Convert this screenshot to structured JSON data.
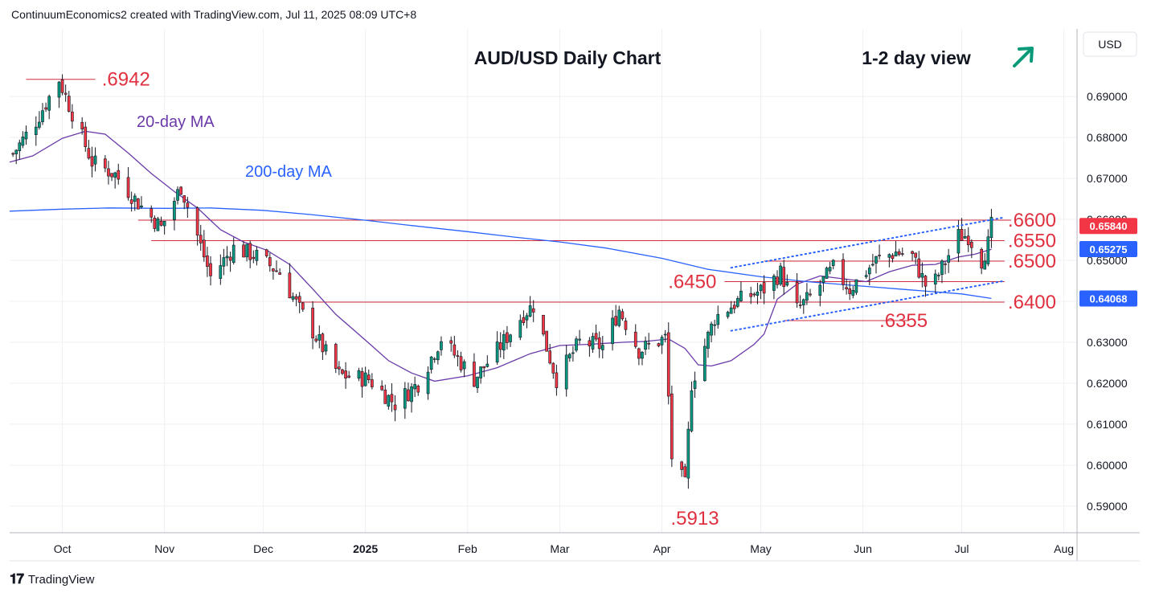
{
  "header": {
    "attribution": "ContinuumEconomics2 created with TradingView.com, Jul 11, 2025 08:09 UTC+8"
  },
  "footer": {
    "brand": "TradingView"
  },
  "chart_data": {
    "type": "candlestick",
    "title": "AUD/USD Daily Chart",
    "view_label": "1-2 day view",
    "view_arrow": "up-right-arrow",
    "currency_label": "USD",
    "y_ticks": [
      "0.69000",
      "0.68000",
      "0.67000",
      "0.66000",
      "0.65000",
      "0.64000",
      "0.63000",
      "0.62000",
      "0.61000",
      "0.60000",
      "0.59000"
    ],
    "y_tick_values": [
      0.69,
      0.68,
      0.67,
      0.66,
      0.65,
      0.64,
      0.63,
      0.62,
      0.61,
      0.6,
      0.59
    ],
    "ylim": [
      0.5835,
      0.7065
    ],
    "x_range": [
      "2024-09-15",
      "2025-08-05"
    ],
    "x_ticks": [
      {
        "label": "Oct",
        "date": "2024-10-01",
        "bold": false
      },
      {
        "label": "Nov",
        "date": "2024-11-01",
        "bold": false
      },
      {
        "label": "Dec",
        "date": "2024-12-01",
        "bold": false
      },
      {
        "label": "2025",
        "date": "2025-01-01",
        "bold": true
      },
      {
        "label": "Feb",
        "date": "2025-02-01",
        "bold": false
      },
      {
        "label": "Mar",
        "date": "2025-03-01",
        "bold": false
      },
      {
        "label": "Apr",
        "date": "2025-04-01",
        "bold": false
      },
      {
        "label": "May",
        "date": "2025-05-01",
        "bold": false
      },
      {
        "label": "Jun",
        "date": "2025-06-01",
        "bold": false
      },
      {
        "label": "Jul",
        "date": "2025-07-01",
        "bold": false
      },
      {
        "label": "Aug",
        "date": "2025-08-01",
        "bold": false
      }
    ],
    "price_badges": [
      {
        "label": "0.65840",
        "value": 0.6584,
        "color": "#f23645"
      },
      {
        "label": "0.65275",
        "value": 0.65275,
        "color": "#2962ff"
      },
      {
        "label": "0.64068",
        "value": 0.64068,
        "color": "#2962ff"
      }
    ],
    "levels": [
      {
        "label": ".6942",
        "value": 0.6942,
        "from": "2024-09-20",
        "to": "2024-10-11"
      },
      {
        "label": ".6600",
        "value": 0.6598,
        "from": "2024-10-24",
        "to": "2025-07-16"
      },
      {
        "label": ".6550",
        "value": 0.6548,
        "from": "2024-10-28",
        "to": "2025-07-14"
      },
      {
        "label": ".6500",
        "value": 0.6498,
        "from": "2025-05-02",
        "to": "2025-07-14"
      },
      {
        "label": ".6450",
        "value": 0.6448,
        "from": "2025-04-20",
        "to": "2025-07-14"
      },
      {
        "label": ".6400",
        "value": 0.6398,
        "from": "2024-12-12",
        "to": "2025-07-14"
      },
      {
        "label": ".6355",
        "value": 0.6353,
        "from": "2025-05-08",
        "to": "2025-06-15"
      },
      {
        "label": ".5913",
        "value": 0.5913,
        "from": null,
        "to": null
      }
    ],
    "channel": {
      "upper": {
        "from": [
          "2025-04-22",
          0.6482
        ],
        "to": [
          "2025-07-14",
          0.6605
        ]
      },
      "lower": {
        "from": [
          "2025-04-22",
          0.6328
        ],
        "to": [
          "2025-07-14",
          0.645
        ]
      }
    },
    "series": [
      {
        "name": "20-day MA",
        "color": "#6a3aa8",
        "points": [
          [
            "2024-09-15",
            0.674
          ],
          [
            "2024-09-22",
            0.6755
          ],
          [
            "2024-10-01",
            0.6798
          ],
          [
            "2024-10-08",
            0.6815
          ],
          [
            "2024-10-14",
            0.6808
          ],
          [
            "2024-10-21",
            0.6762
          ],
          [
            "2024-10-28",
            0.6712
          ],
          [
            "2024-11-04",
            0.6668
          ],
          [
            "2024-11-11",
            0.6628
          ],
          [
            "2024-11-18",
            0.6575
          ],
          [
            "2024-11-25",
            0.6545
          ],
          [
            "2024-12-02",
            0.6525
          ],
          [
            "2024-12-09",
            0.649
          ],
          [
            "2024-12-16",
            0.643
          ],
          [
            "2024-12-23",
            0.6368
          ],
          [
            "2025-01-01",
            0.6305
          ],
          [
            "2025-01-08",
            0.6255
          ],
          [
            "2025-01-15",
            0.6225
          ],
          [
            "2025-01-22",
            0.6205
          ],
          [
            "2025-02-01",
            0.6218
          ],
          [
            "2025-02-10",
            0.6238
          ],
          [
            "2025-02-20",
            0.6272
          ],
          [
            "2025-03-01",
            0.6292
          ],
          [
            "2025-03-10",
            0.6295
          ],
          [
            "2025-03-20",
            0.63
          ],
          [
            "2025-03-27",
            0.6302
          ],
          [
            "2025-04-03",
            0.6308
          ],
          [
            "2025-04-08",
            0.6285
          ],
          [
            "2025-04-12",
            0.6245
          ],
          [
            "2025-04-16",
            0.6242
          ],
          [
            "2025-04-22",
            0.6255
          ],
          [
            "2025-04-29",
            0.6295
          ],
          [
            "2025-05-02",
            0.632
          ],
          [
            "2025-05-06",
            0.6405
          ],
          [
            "2025-05-12",
            0.6442
          ],
          [
            "2025-05-19",
            0.6462
          ],
          [
            "2025-05-26",
            0.6455
          ],
          [
            "2025-06-02",
            0.6448
          ],
          [
            "2025-06-09",
            0.6472
          ],
          [
            "2025-06-16",
            0.6488
          ],
          [
            "2025-06-23",
            0.649
          ],
          [
            "2025-06-30",
            0.6508
          ],
          [
            "2025-07-05",
            0.6515
          ],
          [
            "2025-07-10",
            0.6527
          ]
        ]
      },
      {
        "name": "200-day MA",
        "color": "#2962ff",
        "points": [
          [
            "2024-09-15",
            0.662
          ],
          [
            "2024-10-01",
            0.6625
          ],
          [
            "2024-10-15",
            0.6628
          ],
          [
            "2024-11-01",
            0.6627
          ],
          [
            "2024-11-15",
            0.6628
          ],
          [
            "2024-12-01",
            0.6622
          ],
          [
            "2024-12-15",
            0.6612
          ],
          [
            "2025-01-01",
            0.6598
          ],
          [
            "2025-01-15",
            0.6585
          ],
          [
            "2025-02-01",
            0.657
          ],
          [
            "2025-02-15",
            0.6557
          ],
          [
            "2025-03-01",
            0.6545
          ],
          [
            "2025-03-15",
            0.653
          ],
          [
            "2025-04-01",
            0.6505
          ],
          [
            "2025-04-15",
            0.6478
          ],
          [
            "2025-05-01",
            0.646
          ],
          [
            "2025-05-15",
            0.6448
          ],
          [
            "2025-06-01",
            0.6437
          ],
          [
            "2025-06-15",
            0.6428
          ],
          [
            "2025-07-01",
            0.6418
          ],
          [
            "2025-07-10",
            0.6407
          ]
        ]
      }
    ],
    "series_labels": [
      {
        "name": "20-day MA",
        "color": "#6a3aa8"
      },
      {
        "name": "200-day MA",
        "color": "#2962ff"
      }
    ],
    "candle_path": {
      "comment_free_anchors": true,
      "start": "2024-09-16",
      "end": "2025-07-10",
      "close_anchors": [
        [
          "2024-09-16",
          0.676
        ],
        [
          "2024-09-23",
          0.684
        ],
        [
          "2024-09-30",
          0.6942
        ],
        [
          "2024-10-03",
          0.688
        ],
        [
          "2024-10-10",
          0.674
        ],
        [
          "2024-10-17",
          0.671
        ],
        [
          "2024-10-24",
          0.664
        ],
        [
          "2024-10-31",
          0.658
        ],
        [
          "2024-11-06",
          0.668
        ],
        [
          "2024-11-11",
          0.656
        ],
        [
          "2024-11-15",
          0.646
        ],
        [
          "2024-11-22",
          0.653
        ],
        [
          "2024-11-29",
          0.651
        ],
        [
          "2024-12-06",
          0.647
        ],
        [
          "2024-12-12",
          0.638
        ],
        [
          "2024-12-18",
          0.63
        ],
        [
          "2024-12-24",
          0.622
        ],
        [
          "2025-01-02",
          0.621
        ],
        [
          "2025-01-10",
          0.615
        ],
        [
          "2025-01-17",
          0.62
        ],
        [
          "2025-01-24",
          0.631
        ],
        [
          "2025-02-03",
          0.621
        ],
        [
          "2025-02-10",
          0.628
        ],
        [
          "2025-02-18",
          0.637
        ],
        [
          "2025-02-21",
          0.639
        ],
        [
          "2025-02-28",
          0.621
        ],
        [
          "2025-03-07",
          0.63
        ],
        [
          "2025-03-14",
          0.629
        ],
        [
          "2025-03-19",
          0.638
        ],
        [
          "2025-03-25",
          0.628
        ],
        [
          "2025-04-02",
          0.631
        ],
        [
          "2025-04-04",
          0.602
        ],
        [
          "2025-04-08",
          0.595
        ],
        [
          "2025-04-10",
          0.62
        ],
        [
          "2025-04-17",
          0.636
        ],
        [
          "2025-04-24",
          0.64
        ],
        [
          "2025-05-02",
          0.643
        ],
        [
          "2025-05-07",
          0.647
        ],
        [
          "2025-05-12",
          0.638
        ],
        [
          "2025-05-16",
          0.641
        ],
        [
          "2025-05-23",
          0.648
        ],
        [
          "2025-05-28",
          0.643
        ],
        [
          "2025-06-05",
          0.65
        ],
        [
          "2025-06-11",
          0.652
        ],
        [
          "2025-06-16",
          0.651
        ],
        [
          "2025-06-20",
          0.644
        ],
        [
          "2025-06-23",
          0.645
        ],
        [
          "2025-06-30",
          0.656
        ],
        [
          "2025-07-03",
          0.656
        ],
        [
          "2025-07-07",
          0.65
        ],
        [
          "2025-07-09",
          0.654
        ],
        [
          "2025-07-10",
          0.6584
        ]
      ]
    }
  }
}
